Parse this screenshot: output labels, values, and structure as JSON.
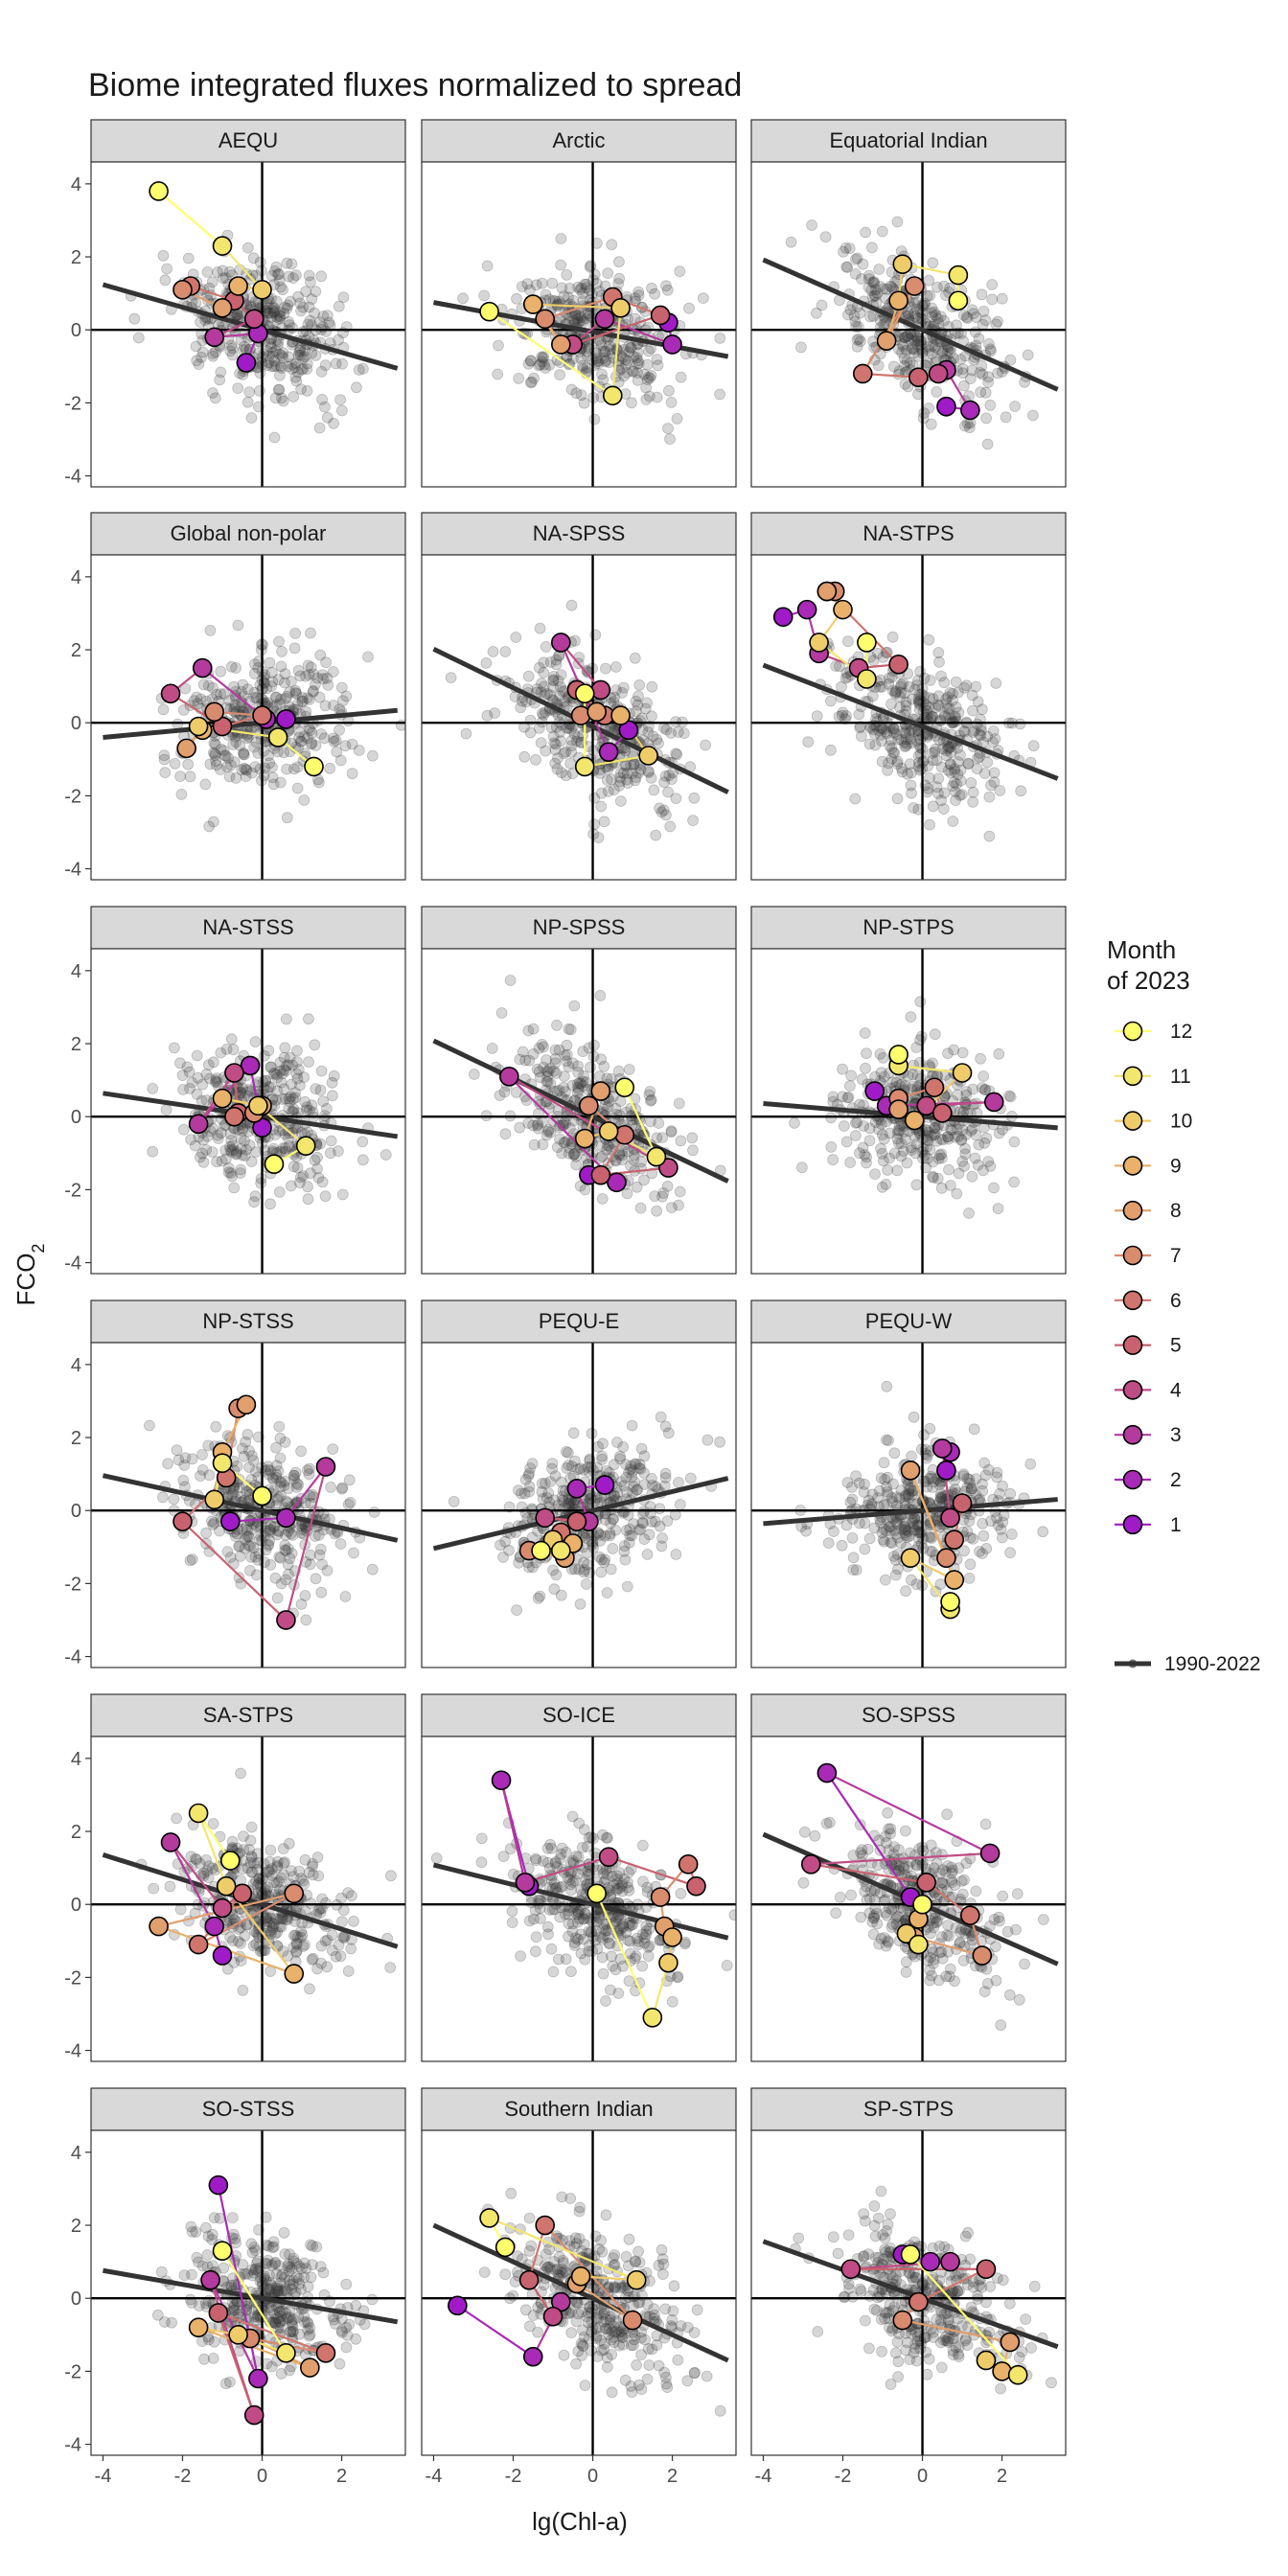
{
  "chart_data": {
    "type": "scatter",
    "title": "Biome integrated fluxes normalized to spread",
    "xlabel": "lg(Chl-a)",
    "ylabel": "FCO2",
    "xlim": [
      -4.3,
      3.6
    ],
    "ylim": [
      -4.3,
      4.6
    ],
    "x_ticks": [
      -4,
      -2,
      0,
      2
    ],
    "y_ticks": [
      -4,
      -2,
      0,
      2,
      4
    ],
    "legend": {
      "title_lines": [
        "Month",
        "of 2023"
      ],
      "months": [
        12,
        11,
        10,
        9,
        8,
        7,
        6,
        5,
        4,
        3,
        2,
        1
      ],
      "month_colors": [
        "#FFFF6E",
        "#F3E66C",
        "#EFCC6A",
        "#E9B169",
        "#E09F6C",
        "#D98B6E",
        "#D0756E",
        "#C8626F",
        "#C04C85",
        "#B43A9E",
        "#A82AB6",
        "#A01BC7"
      ],
      "line_label": "1990-2022",
      "placement": "right"
    },
    "background_color": "#333333",
    "panels": [
      {
        "name": "AEQU",
        "slope": -0.31,
        "intercept": 0.0,
        "seed": 1,
        "months": [
          [
            -0.4,
            -0.9
          ],
          [
            -0.1,
            -0.1
          ],
          [
            -1.2,
            -0.2
          ],
          [
            -0.2,
            0.3
          ],
          [
            -0.7,
            0.8
          ],
          [
            -1.8,
            1.2
          ],
          [
            -2.0,
            1.1
          ],
          [
            -1.0,
            0.6
          ],
          [
            -0.6,
            1.2
          ],
          [
            0.0,
            1.1
          ],
          [
            -1.0,
            2.3
          ],
          [
            -2.6,
            3.8
          ]
        ]
      },
      {
        "name": "Arctic",
        "slope": -0.2,
        "intercept": -0.05,
        "seed": 2,
        "months": [
          [
            1.9,
            0.2
          ],
          [
            2.0,
            -0.4
          ],
          [
            0.3,
            0.3
          ],
          [
            -0.5,
            -0.4
          ],
          [
            1.7,
            0.4
          ],
          [
            0.5,
            0.9
          ],
          [
            -1.2,
            0.3
          ],
          [
            -0.8,
            -0.4
          ],
          [
            -1.5,
            0.7
          ],
          [
            0.7,
            0.6
          ],
          [
            0.5,
            -1.8
          ],
          [
            -2.6,
            0.5
          ]
        ]
      },
      {
        "name": "Equatorial Indian",
        "slope": -0.48,
        "intercept": 0.0,
        "seed": 3,
        "months": [
          [
            0.6,
            -2.1
          ],
          [
            1.2,
            -2.2
          ],
          [
            0.6,
            -1.1
          ],
          [
            0.4,
            -1.2
          ],
          [
            -0.1,
            -1.3
          ],
          [
            -1.5,
            -1.2
          ],
          [
            -0.2,
            1.2
          ],
          [
            -0.9,
            -0.3
          ],
          [
            -0.6,
            0.8
          ],
          [
            -0.5,
            1.8
          ],
          [
            0.9,
            1.5
          ],
          [
            0.9,
            0.8
          ]
        ]
      },
      {
        "name": "Global non-polar",
        "slope": 0.1,
        "intercept": 0.0,
        "seed": 4,
        "months": [
          [
            0.6,
            0.1
          ],
          [
            0.1,
            0.1
          ],
          [
            -1.5,
            1.5
          ],
          [
            -2.3,
            0.8
          ],
          [
            -1.0,
            -0.1
          ],
          [
            0.0,
            0.2
          ],
          [
            -1.2,
            0.3
          ],
          [
            -1.9,
            -0.7
          ],
          [
            -1.5,
            -0.2
          ],
          [
            -1.6,
            -0.1
          ],
          [
            0.4,
            -0.4
          ],
          [
            1.3,
            -1.2
          ]
        ]
      },
      {
        "name": "NA-SPSS",
        "slope": -0.53,
        "intercept": -0.1,
        "seed": 5,
        "months": [
          [
            0.9,
            -0.2
          ],
          [
            0.4,
            -0.8
          ],
          [
            -0.8,
            2.2
          ],
          [
            0.2,
            0.9
          ],
          [
            -0.4,
            0.9
          ],
          [
            0.3,
            0.2
          ],
          [
            -0.3,
            0.2
          ],
          [
            0.1,
            0.3
          ],
          [
            0.7,
            0.2
          ],
          [
            1.4,
            -0.9
          ],
          [
            -0.2,
            -1.2
          ],
          [
            -0.2,
            0.8
          ]
        ]
      },
      {
        "name": "NA-STPS",
        "slope": -0.42,
        "intercept": -0.1,
        "seed": 6,
        "months": [
          [
            -3.5,
            2.9
          ],
          [
            -2.9,
            3.1
          ],
          [
            -2.6,
            1.9
          ],
          [
            -1.6,
            1.5
          ],
          [
            -0.6,
            1.6
          ],
          [
            -2.4,
            3.6
          ],
          [
            -2.2,
            3.6
          ],
          [
            -2.4,
            3.6
          ],
          [
            -2.0,
            3.1
          ],
          [
            -2.6,
            2.2
          ],
          [
            -1.4,
            1.2
          ],
          [
            -1.4,
            2.2
          ]
        ]
      },
      {
        "name": "NA-STSS",
        "slope": -0.16,
        "intercept": 0.0,
        "seed": 7,
        "months": [
          [
            0.0,
            -0.3
          ],
          [
            -0.3,
            1.4
          ],
          [
            -1.6,
            -0.2
          ],
          [
            -0.7,
            1.2
          ],
          [
            -0.6,
            0.1
          ],
          [
            -0.7,
            0.0
          ],
          [
            -0.2,
            0.1
          ],
          [
            0.0,
            0.3
          ],
          [
            -1.0,
            0.5
          ],
          [
            -0.1,
            0.3
          ],
          [
            1.1,
            -0.8
          ],
          [
            0.3,
            -1.3
          ]
        ]
      },
      {
        "name": "NP-SPSS",
        "slope": -0.52,
        "intercept": 0.0,
        "seed": 8,
        "months": [
          [
            -0.1,
            -1.6
          ],
          [
            0.6,
            -1.8
          ],
          [
            -2.1,
            1.1
          ],
          [
            1.9,
            -1.4
          ],
          [
            0.2,
            -1.6
          ],
          [
            0.8,
            -0.5
          ],
          [
            -0.1,
            0.3
          ],
          [
            0.2,
            0.7
          ],
          [
            -0.2,
            -0.6
          ],
          [
            0.4,
            -0.4
          ],
          [
            1.6,
            -1.1
          ],
          [
            0.8,
            0.8
          ]
        ]
      },
      {
        "name": "NP-STPS",
        "slope": -0.09,
        "intercept": 0.0,
        "seed": 9,
        "months": [
          [
            -1.2,
            0.7
          ],
          [
            -0.9,
            0.3
          ],
          [
            1.8,
            0.4
          ],
          [
            0.1,
            0.3
          ],
          [
            0.5,
            0.1
          ],
          [
            0.3,
            0.8
          ],
          [
            -0.6,
            0.5
          ],
          [
            -0.6,
            0.2
          ],
          [
            -0.2,
            -0.1
          ],
          [
            1.0,
            1.2
          ],
          [
            -0.6,
            1.4
          ],
          [
            -0.6,
            1.7
          ]
        ]
      },
      {
        "name": "NP-STSS",
        "slope": -0.24,
        "intercept": 0.0,
        "seed": 10,
        "months": [
          [
            -0.8,
            -0.3
          ],
          [
            0.6,
            -0.2
          ],
          [
            1.6,
            1.2
          ],
          [
            0.6,
            -3.0
          ],
          [
            -2.0,
            -0.3
          ],
          [
            -0.9,
            0.9
          ],
          [
            -0.6,
            2.8
          ],
          [
            -0.4,
            2.9
          ],
          [
            -1.0,
            1.6
          ],
          [
            -1.2,
            0.3
          ],
          [
            -1.0,
            1.3
          ],
          [
            0.0,
            0.4
          ]
        ]
      },
      {
        "name": "PEQU-E",
        "slope": 0.26,
        "intercept": 0.0,
        "seed": 11,
        "months": [
          [
            0.3,
            0.7
          ],
          [
            -0.4,
            0.6
          ],
          [
            -0.1,
            -0.3
          ],
          [
            -1.2,
            -0.2
          ],
          [
            -0.4,
            -0.3
          ],
          [
            -0.8,
            -0.6
          ],
          [
            -1.6,
            -1.1
          ],
          [
            -0.7,
            -1.3
          ],
          [
            -0.5,
            -0.9
          ],
          [
            -1.0,
            -0.8
          ],
          [
            -0.8,
            -1.1
          ],
          [
            -1.3,
            -1.1
          ]
        ]
      },
      {
        "name": "PEQU-W",
        "slope": 0.09,
        "intercept": 0.0,
        "seed": 12,
        "months": [
          [
            0.6,
            1.1
          ],
          [
            0.7,
            1.6
          ],
          [
            0.5,
            1.7
          ],
          [
            0.7,
            -0.2
          ],
          [
            1.0,
            0.2
          ],
          [
            0.8,
            -0.8
          ],
          [
            0.6,
            -1.3
          ],
          [
            -0.3,
            1.1
          ],
          [
            0.8,
            -1.9
          ],
          [
            -0.3,
            -1.3
          ],
          [
            0.7,
            -2.7
          ],
          [
            0.7,
            -2.5
          ]
        ]
      },
      {
        "name": "SA-STPS",
        "slope": -0.34,
        "intercept": 0.0,
        "seed": 13,
        "months": [
          [
            -1.0,
            -1.4
          ],
          [
            -1.2,
            -0.6
          ],
          [
            -2.3,
            1.7
          ],
          [
            -1.0,
            -0.1
          ],
          [
            -0.5,
            0.3
          ],
          [
            -1.6,
            -1.1
          ],
          [
            0.8,
            0.3
          ],
          [
            -2.6,
            -0.6
          ],
          [
            0.8,
            -1.9
          ],
          [
            -0.9,
            0.5
          ],
          [
            -1.6,
            2.5
          ],
          [
            -0.8,
            1.2
          ]
        ]
      },
      {
        "name": "SO-ICE",
        "slope": -0.27,
        "intercept": 0.0,
        "seed": 14,
        "months": [
          [
            -1.6,
            0.5
          ],
          [
            -2.3,
            3.4
          ],
          [
            -1.7,
            0.6
          ],
          [
            0.4,
            1.3
          ],
          [
            2.6,
            0.5
          ],
          [
            2.4,
            1.1
          ],
          [
            1.7,
            0.2
          ],
          [
            1.8,
            -0.6
          ],
          [
            2.0,
            -0.9
          ],
          [
            1.9,
            -1.6
          ],
          [
            1.5,
            -3.1
          ],
          [
            0.1,
            0.3
          ]
        ]
      },
      {
        "name": "SO-SPSS",
        "slope": -0.48,
        "intercept": 0.0,
        "seed": 15,
        "months": [
          [
            -0.3,
            0.2
          ],
          [
            -2.4,
            3.6
          ],
          [
            1.7,
            1.4
          ],
          [
            -2.8,
            1.1
          ],
          [
            0.1,
            0.6
          ],
          [
            1.2,
            -0.3
          ],
          [
            1.5,
            -1.4
          ],
          [
            -0.2,
            -0.9
          ],
          [
            -0.1,
            -0.4
          ],
          [
            -0.4,
            -0.8
          ],
          [
            -0.1,
            -1.1
          ],
          [
            0.0,
            0.0
          ]
        ]
      },
      {
        "name": "SO-STSS",
        "slope": -0.19,
        "intercept": 0.0,
        "seed": 16,
        "months": [
          [
            -1.1,
            3.1
          ],
          [
            -0.1,
            -2.2
          ],
          [
            -1.3,
            0.5
          ],
          [
            -0.2,
            -3.2
          ],
          [
            -1.1,
            -0.4
          ],
          [
            1.6,
            -1.5
          ],
          [
            -0.3,
            -1.1
          ],
          [
            1.2,
            -1.9
          ],
          [
            -1.6,
            -0.8
          ],
          [
            -0.6,
            -1.0
          ],
          [
            0.6,
            -1.5
          ],
          [
            -1.0,
            1.3
          ]
        ]
      },
      {
        "name": "Southern Indian",
        "slope": -0.5,
        "intercept": 0.0,
        "seed": 17,
        "months": [
          [
            -3.4,
            -0.2
          ],
          [
            -1.5,
            -1.6
          ],
          [
            -0.8,
            -0.1
          ],
          [
            -1.0,
            -0.5
          ],
          [
            -1.6,
            0.5
          ],
          [
            -1.2,
            2.0
          ],
          [
            1.0,
            -0.6
          ],
          [
            -0.4,
            0.4
          ],
          [
            -0.3,
            0.6
          ],
          [
            1.1,
            0.5
          ],
          [
            -2.6,
            2.2
          ],
          [
            -2.2,
            1.4
          ]
        ]
      },
      {
        "name": "SP-STPS",
        "slope": -0.39,
        "intercept": 0.0,
        "seed": 18,
        "months": [
          [
            -0.5,
            1.2
          ],
          [
            0.2,
            1.0
          ],
          [
            0.7,
            1.0
          ],
          [
            -1.8,
            0.8
          ],
          [
            1.6,
            0.8
          ],
          [
            -0.1,
            -0.1
          ],
          [
            -0.5,
            -0.6
          ],
          [
            2.2,
            -1.2
          ],
          [
            2.0,
            -2.0
          ],
          [
            1.6,
            -1.7
          ],
          [
            2.4,
            -2.1
          ],
          [
            -0.3,
            1.2
          ]
        ]
      }
    ]
  }
}
